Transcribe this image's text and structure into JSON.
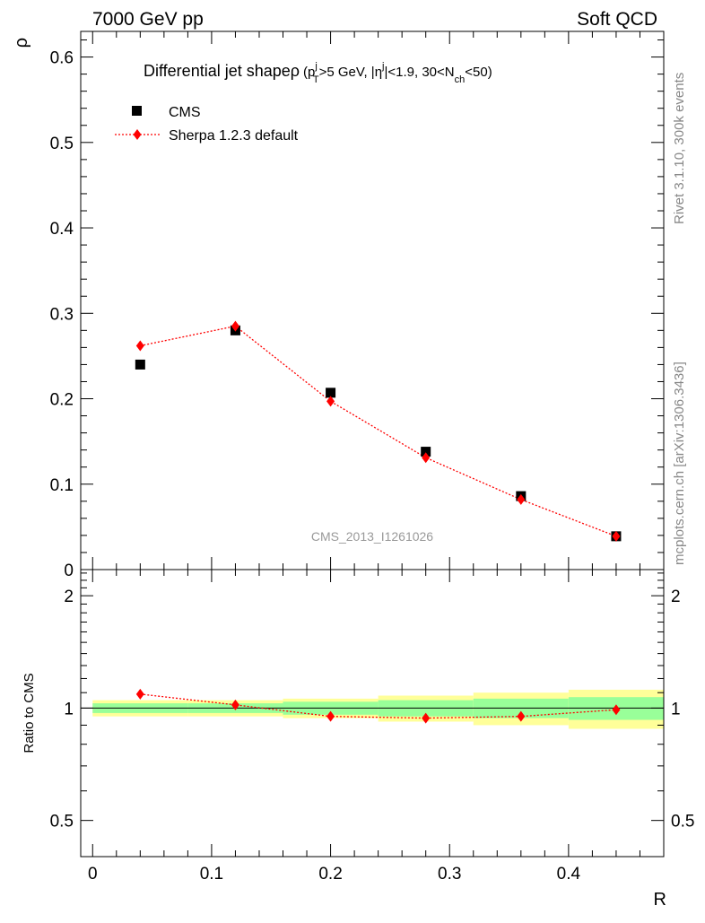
{
  "header": {
    "left": "7000 GeV pp",
    "right": "Soft QCD"
  },
  "side_labels": {
    "rivet": "Rivet 3.1.10,  300k events",
    "source": "mcplots.cern.ch [arXiv:1306.3436]"
  },
  "chart_data": {
    "type": "scatter",
    "title_parts": {
      "main": "Differential jet shape",
      "rho": "ρ",
      "open": "(p",
      "pt_sup": "j",
      "pt_sub": "T",
      "mid1": ">5 GeV, |η",
      "eta_sup": "j",
      "mid2": "|<1.9, 30<N",
      "nch_sub": "ch",
      "end": "<50)"
    },
    "watermark": "CMS_2013_I1261026",
    "xlabel": "R",
    "xlim": [
      -0.01,
      0.48
    ],
    "xticks": [
      0,
      0.1,
      0.2,
      0.3,
      0.4
    ],
    "xtick_labels": [
      "0",
      "0.1",
      "0.2",
      "0.3",
      "0.4"
    ],
    "top": {
      "ylabel": "ρ",
      "ylim": [
        0,
        0.63
      ],
      "yticks": [
        0,
        0.1,
        0.2,
        0.3,
        0.4,
        0.5,
        0.6
      ],
      "ytick_labels": [
        "0",
        "0.1",
        "0.2",
        "0.3",
        "0.4",
        "0.5",
        "0.6"
      ]
    },
    "ratio": {
      "ylabel": "Ratio to CMS",
      "log_scale": true,
      "ylim": [
        0.4,
        2.35
      ],
      "yticks": [
        0.5,
        1,
        2
      ],
      "ytick_labels": [
        "0.5",
        "1",
        "2"
      ]
    },
    "legend": {
      "placement": "top-left",
      "entries": [
        "CMS",
        "Sherpa 1.2.3 default"
      ]
    },
    "series": [
      {
        "name": "CMS",
        "color": "#000000",
        "marker": "square",
        "x": [
          0.04,
          0.12,
          0.2,
          0.28,
          0.36,
          0.44
        ],
        "y": [
          0.24,
          0.28,
          0.207,
          0.138,
          0.086,
          0.039
        ],
        "xerr": 0.04
      },
      {
        "name": "Sherpa 1.2.3 default",
        "color": "#ff0000",
        "marker": "diamond",
        "line": "dotted",
        "x": [
          0.04,
          0.12,
          0.2,
          0.28,
          0.36,
          0.44
        ],
        "y": [
          0.262,
          0.285,
          0.197,
          0.131,
          0.082,
          0.039
        ],
        "ratio": [
          1.09,
          1.02,
          0.95,
          0.94,
          0.95,
          0.99
        ]
      }
    ],
    "uncertainty_bands": {
      "bins": [
        [
          0,
          0.08
        ],
        [
          0.08,
          0.16
        ],
        [
          0.16,
          0.24
        ],
        [
          0.24,
          0.32
        ],
        [
          0.32,
          0.4
        ],
        [
          0.4,
          0.48
        ]
      ],
      "stat": [
        [
          0.97,
          1.03
        ],
        [
          0.97,
          1.03
        ],
        [
          0.96,
          1.04
        ],
        [
          0.95,
          1.05
        ],
        [
          0.94,
          1.06
        ],
        [
          0.93,
          1.07
        ]
      ],
      "total": [
        [
          0.95,
          1.05
        ],
        [
          0.95,
          1.05
        ],
        [
          0.94,
          1.06
        ],
        [
          0.92,
          1.08
        ],
        [
          0.9,
          1.1
        ],
        [
          0.88,
          1.12
        ]
      ],
      "stat_color": "#99ff99",
      "total_color": "#ffff99"
    }
  }
}
